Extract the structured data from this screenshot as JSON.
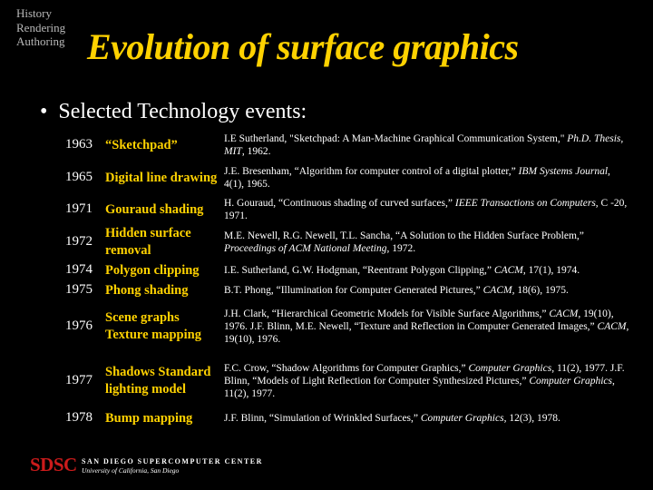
{
  "nav": [
    "History",
    "Rendering",
    "Authoring"
  ],
  "title": "Evolution of surface graphics",
  "bullet": "Selected Technology events:",
  "bullet_symbol": "•",
  "rows": [
    {
      "year": "1963",
      "event": "“Sketchpad”",
      "ref": [
        {
          "t": "I.E Sutherland, \"Sketchpad:  A Man-Machine Graphical Communication System,\" "
        },
        {
          "t": "Ph.D. Thesis, MIT",
          "i": true
        },
        {
          "t": ", 1962."
        }
      ]
    },
    {
      "year": "1965",
      "event": "Digital line drawing",
      "ref": [
        {
          "t": "J.E. Bresenham, “Algorithm for computer control of a digital plotter,” "
        },
        {
          "t": "IBM Systems Journal",
          "i": true
        },
        {
          "t": ", 4(1), 1965."
        }
      ]
    },
    {
      "year": "1971",
      "event": "Gouraud shading",
      "ref": [
        {
          "t": "H. Gouraud, “Continuous shading of curved surfaces,” "
        },
        {
          "t": "IEEE Transactions on Computers",
          "i": true
        },
        {
          "t": ", C -20, 1971."
        }
      ]
    },
    {
      "year": "1972",
      "event": "Hidden surface removal",
      "ref": [
        {
          "t": "M.E. Newell, R.G. Newell, T.L. Sancha, “A Solution to the Hidden Surface Problem,” "
        },
        {
          "t": "Proceedings of ACM National Meeting",
          "i": true
        },
        {
          "t": ", 1972."
        }
      ]
    },
    {
      "year": "1974",
      "event": "Polygon clipping",
      "ref": [
        {
          "t": "I.E. Sutherland, G.W. Hodgman, “Reentrant Polygon Clipping,” "
        },
        {
          "t": "CACM",
          "i": true
        },
        {
          "t": ", 17(1), 1974."
        }
      ]
    },
    {
      "year": "1975",
      "event": "Phong shading",
      "ref": [
        {
          "t": "B.T. Phong, “Illumination for Computer Generated Pictures,” "
        },
        {
          "t": "CACM",
          "i": true
        },
        {
          "t": ", 18(6), 1975."
        }
      ]
    },
    {
      "year": "1976",
      "event": "Scene graphs Texture mapping",
      "ref": [
        {
          "t": "J.H. Clark, “Hierarchical Geometric Models for Visible Surface Algorithms,” "
        },
        {
          "t": "CACM",
          "i": true
        },
        {
          "t": ", 19(10), 1976. J.F. Blinn, M.E. Newell, “Texture and Reflection in Computer Generated Images,” "
        },
        {
          "t": "CACM",
          "i": true
        },
        {
          "t": ", 19(10), 1976."
        }
      ]
    },
    {
      "year": "1977",
      "event": "Shadows Standard lighting model",
      "ref": [
        {
          "t": "F.C. Crow, “Shadow Algorithms for Computer Graphics,” "
        },
        {
          "t": "Computer Graphics",
          "i": true
        },
        {
          "t": ", 11(2), 1977. J.F. Blinn, “Models of Light Reflection for Computer Synthesized Pictures,” "
        },
        {
          "t": "Computer Graphics",
          "i": true
        },
        {
          "t": ", 11(2), 1977."
        }
      ]
    },
    {
      "year": "1978",
      "event": "Bump mapping",
      "ref": [
        {
          "t": "J.F. Blinn, “Simulation of Wrinkled Surfaces,” "
        },
        {
          "t": "Computer Graphics",
          "i": true
        },
        {
          "t": ", 12(3), 1978."
        }
      ]
    }
  ],
  "footer": {
    "logo": "SDSC",
    "center": "SAN DIEGO SUPERCOMPUTER CENTER",
    "university": "University of California, San Diego"
  },
  "colors": {
    "background": "#000000",
    "title": "#ffd200",
    "event": "#ffd200",
    "logo": "#cc1b1b"
  }
}
